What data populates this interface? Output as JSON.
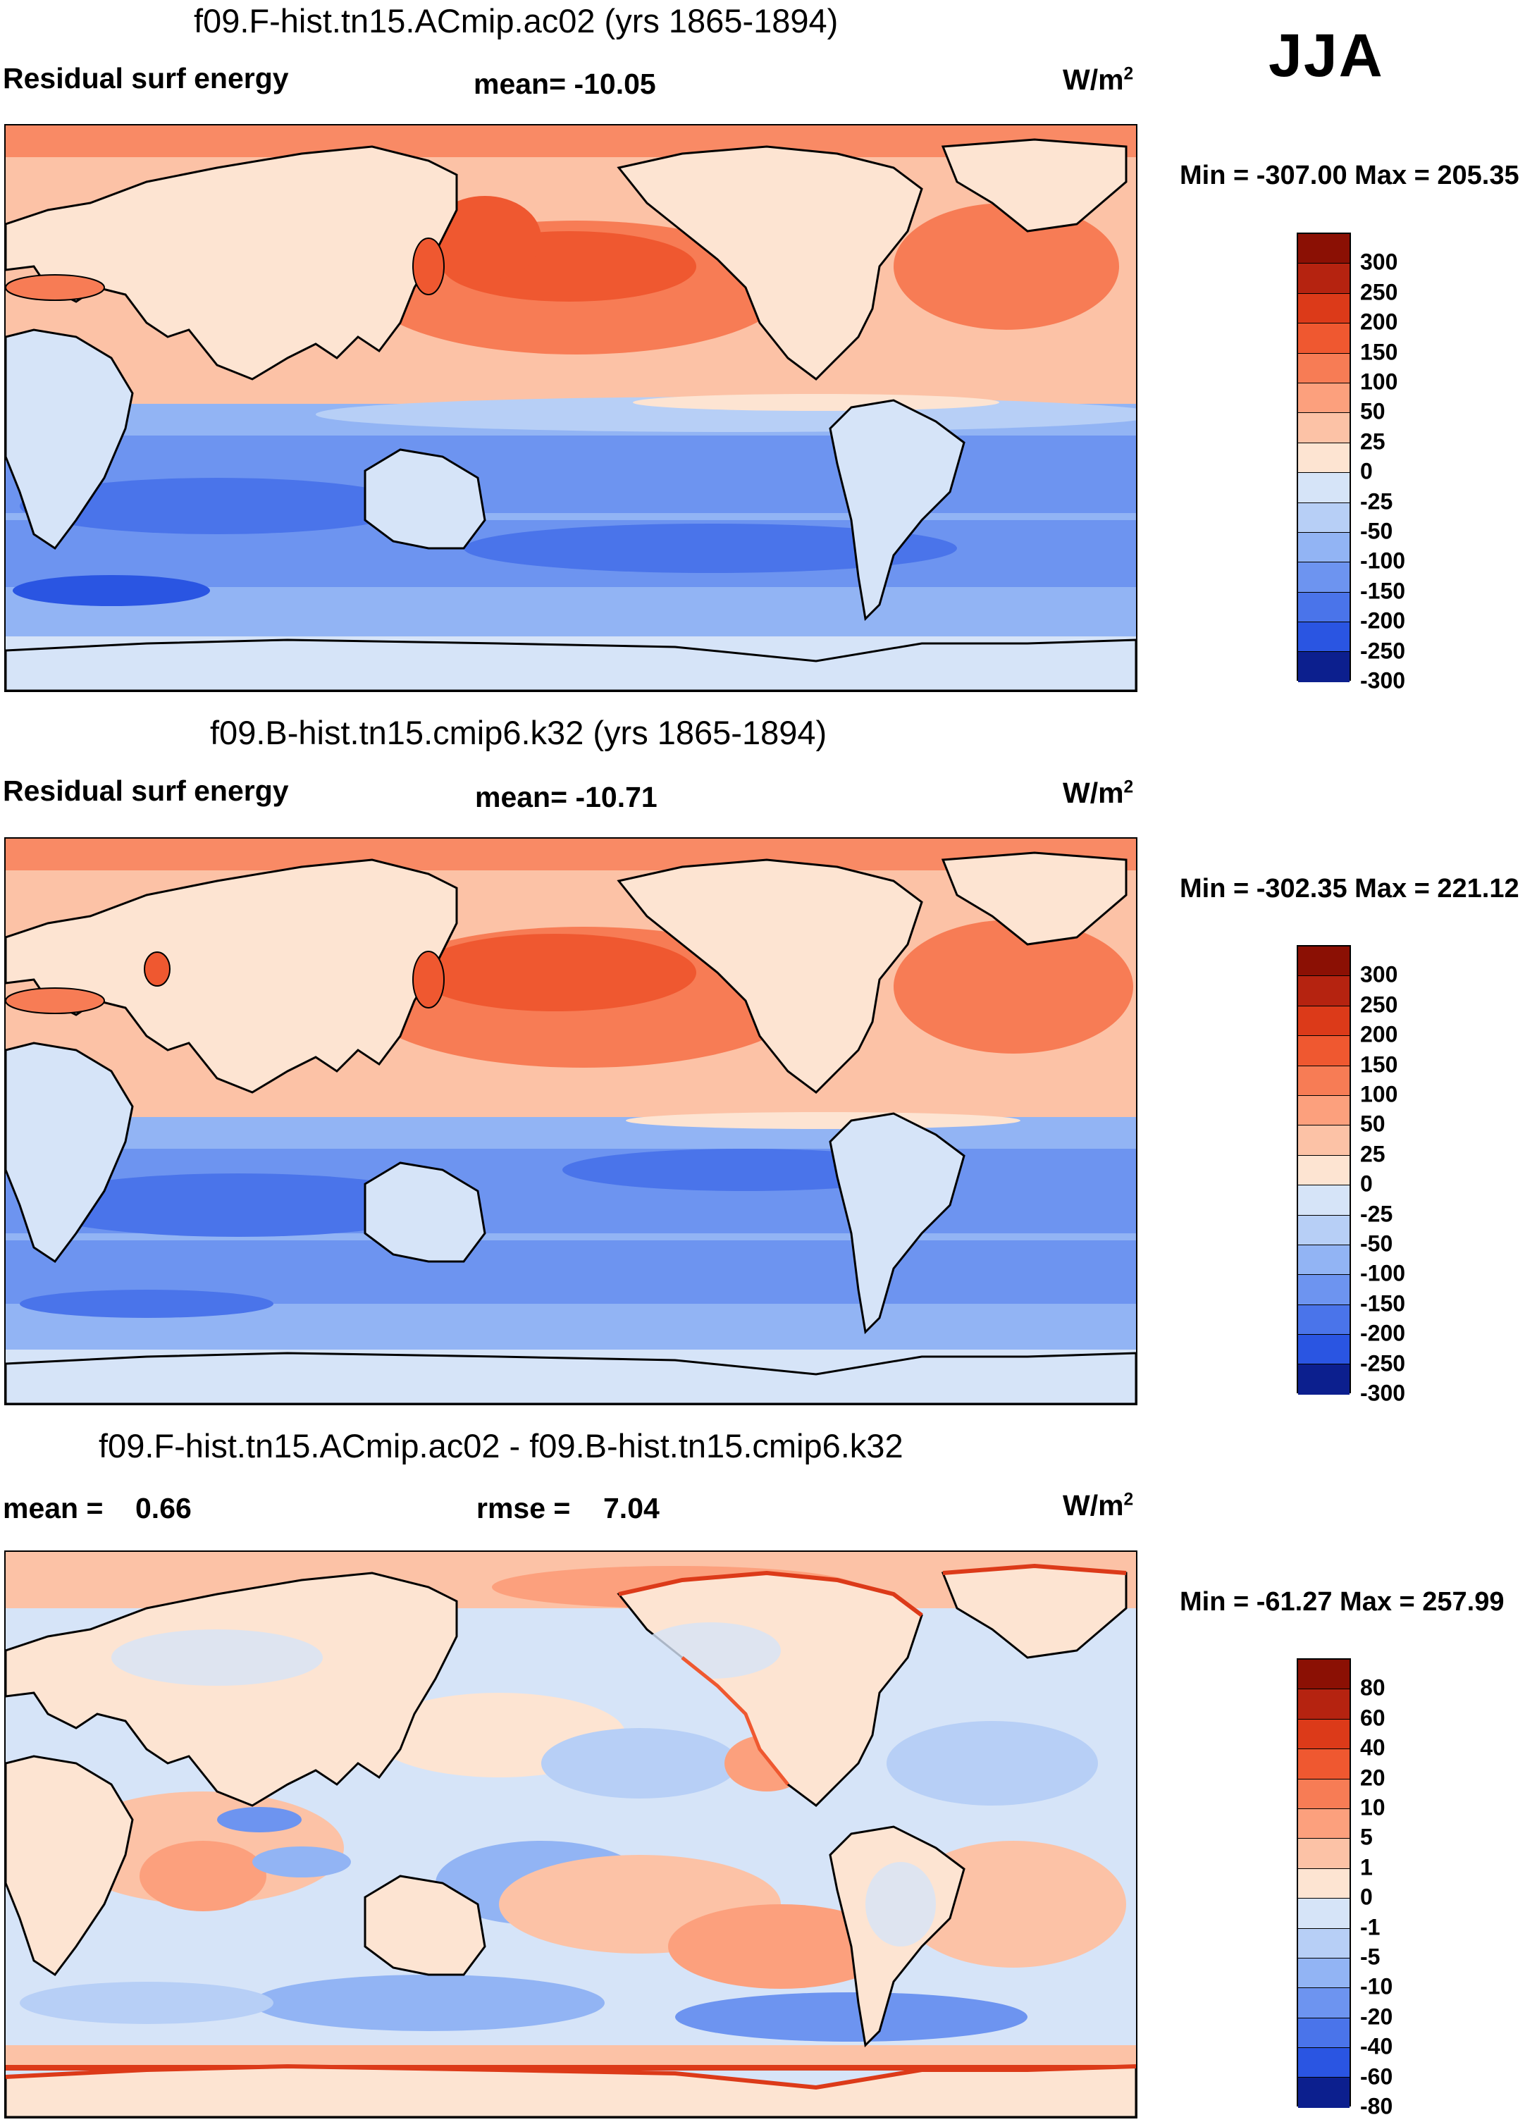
{
  "season": "JJA",
  "units_main": "W/m",
  "units_sup": "2",
  "colors": {
    "pos": [
      "#fde4d2",
      "#fcc2a6",
      "#fca07d",
      "#f77c55",
      "#ef5830",
      "#dc3a19",
      "#b52310",
      "#8b1004"
    ],
    "neg": [
      "#d6e4f8",
      "#b7cff6",
      "#92b4f4",
      "#6d94f0",
      "#4a74ea",
      "#2a55e2",
      "#1738c0",
      "#0c1f8e"
    ],
    "land_pos": "#fde4d2",
    "land_neg": "#d6e4f8",
    "coast": "#000000"
  },
  "panels": [
    {
      "title": "f09.F-hist.tn15.ACmip.ac02 (yrs 1865-1894)",
      "variable": "Residual surf energy",
      "stat": "mean= -10.05",
      "minmax": "Min = -307.00 Max = 205.35",
      "colorbar_labels": [
        "300",
        "250",
        "200",
        "150",
        "100",
        "50",
        "25",
        "0",
        "-25",
        "-50",
        "-100",
        "-150",
        "-200",
        "-250",
        "-300"
      ]
    },
    {
      "title": "f09.B-hist.tn15.cmip6.k32 (yrs 1865-1894)",
      "variable": "Residual surf energy",
      "stat": "mean= -10.71",
      "minmax": "Min = -302.35 Max = 221.12",
      "colorbar_labels": [
        "300",
        "250",
        "200",
        "150",
        "100",
        "50",
        "25",
        "0",
        "-25",
        "-50",
        "-100",
        "-150",
        "-200",
        "-250",
        "-300"
      ]
    },
    {
      "title": "f09.F-hist.tn15.ACmip.ac02 - f09.B-hist.tn15.cmip6.k32",
      "mean_label": "mean =",
      "mean_value": "0.66",
      "rmse_label": "rmse =",
      "rmse_value": "7.04",
      "minmax": "Min = -61.27 Max = 257.99",
      "colorbar_labels": [
        "80",
        "60",
        "40",
        "20",
        "10",
        "5",
        "1",
        "0",
        "-1",
        "-5",
        "-10",
        "-20",
        "-40",
        "-60",
        "-80"
      ]
    }
  ]
}
